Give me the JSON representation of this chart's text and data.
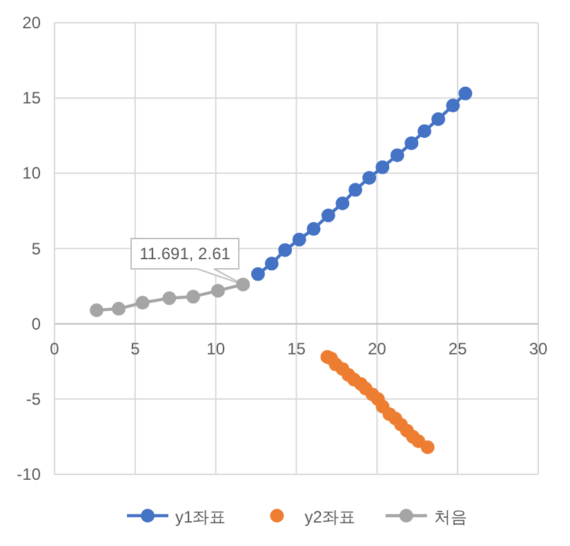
{
  "chart_data": {
    "type": "line",
    "xlim": [
      0,
      30
    ],
    "ylim": [
      -10,
      20
    ],
    "xticks": [
      0,
      5,
      10,
      15,
      20,
      25,
      30
    ],
    "yticks": [
      -10,
      -5,
      0,
      5,
      10,
      15,
      20
    ],
    "grid": true,
    "legend": "bottom",
    "marker": "circle",
    "series": [
      {
        "name": "y1좌표",
        "type": "line",
        "color": "#4472c4",
        "x": [
          12.62,
          13.47,
          14.3,
          15.18,
          16.07,
          16.98,
          17.86,
          18.66,
          19.52,
          20.34,
          21.26,
          22.14,
          22.94,
          23.8,
          24.71,
          25.48
        ],
        "values": [
          3.3,
          4.0,
          4.9,
          5.6,
          6.3,
          7.2,
          8.0,
          8.9,
          9.7,
          10.4,
          11.2,
          12.0,
          12.8,
          13.6,
          14.5,
          15.3
        ]
      },
      {
        "name": "y2좌표",
        "type": "scatter",
        "color": "#ed7d31",
        "x": [
          16.92,
          17.15,
          17.44,
          17.86,
          18.23,
          18.57,
          19.0,
          19.29,
          19.72,
          20.06,
          20.35,
          20.77,
          21.15,
          21.49,
          21.86,
          22.22,
          22.57,
          23.14
        ],
        "values": [
          -2.2,
          -2.3,
          -2.7,
          -3.0,
          -3.4,
          -3.7,
          -4.0,
          -4.3,
          -4.7,
          -5.0,
          -5.5,
          -6.0,
          -6.3,
          -6.7,
          -7.1,
          -7.5,
          -7.8,
          -8.2
        ]
      },
      {
        "name": "처음",
        "type": "line",
        "color": "#a5a5a5",
        "x": [
          2.61,
          3.98,
          5.46,
          7.12,
          8.6,
          10.14,
          11.691
        ],
        "values": [
          0.9,
          1.0,
          1.4,
          1.7,
          1.8,
          2.2,
          2.61
        ]
      }
    ],
    "annotations": [
      {
        "text": "11.691, 2.61",
        "x": 11.691,
        "y": 2.61
      }
    ]
  }
}
